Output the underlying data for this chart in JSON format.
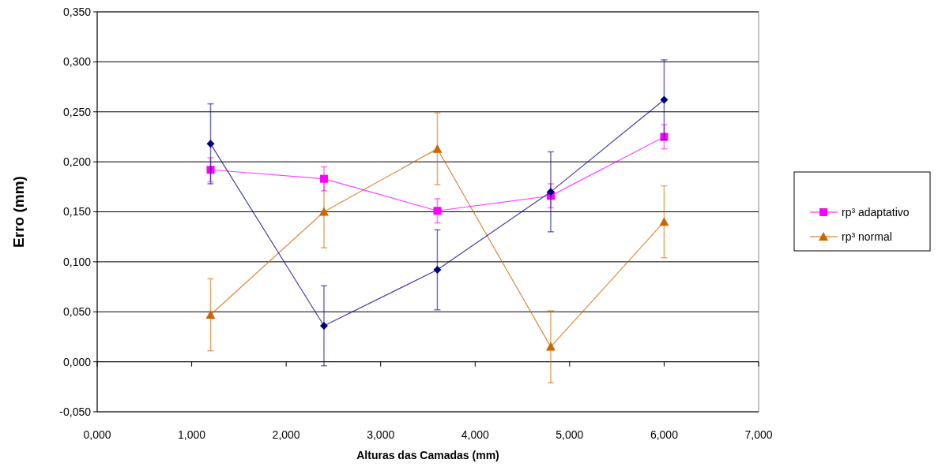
{
  "chart_data": {
    "type": "line",
    "xlabel": "Alturas das Camadas  (mm)",
    "ylabel": "Erro (mm)",
    "xlim": [
      0,
      7
    ],
    "xticks": [
      {
        "value": 0,
        "label": "0,000"
      },
      {
        "value": 1,
        "label": "1,000"
      },
      {
        "value": 2,
        "label": "2,000"
      },
      {
        "value": 3,
        "label": "3,000"
      },
      {
        "value": 4,
        "label": "4,000"
      },
      {
        "value": 5,
        "label": "5,000"
      },
      {
        "value": 6,
        "label": "6,000"
      },
      {
        "value": 7,
        "label": "7,000"
      }
    ],
    "ylim": [
      -0.05,
      0.35
    ],
    "yticks": [
      {
        "value": -0.05,
        "label": "-0,050"
      },
      {
        "value": 0,
        "label": "0,000"
      },
      {
        "value": 0.05,
        "label": "0,050"
      },
      {
        "value": 0.1,
        "label": "0,100"
      },
      {
        "value": 0.15,
        "label": "0,150"
      },
      {
        "value": 0.2,
        "label": "0,200"
      },
      {
        "value": 0.25,
        "label": "0,250"
      },
      {
        "value": 0.3,
        "label": "0,300"
      },
      {
        "value": 0.35,
        "label": "0,350"
      }
    ],
    "grid": "y",
    "legend": "right",
    "x": [
      1.2,
      2.4,
      3.6,
      4.8,
      6.0
    ],
    "series": [
      {
        "color": "#000080",
        "marker": "diamond",
        "values": [
          0.218,
          0.036,
          0.092,
          0.17,
          0.262
        ],
        "errors": [
          0.04,
          0.04,
          0.04,
          0.04,
          0.04
        ]
      },
      {
        "name": "rp³ adaptativo",
        "color": "#ff00ff",
        "marker": "square",
        "values": [
          0.192,
          0.183,
          0.151,
          0.166,
          0.225
        ],
        "errors": [
          0.012,
          0.012,
          0.012,
          0.012,
          0.012
        ]
      },
      {
        "name": "rp³ normal",
        "color": "#cc6600",
        "marker": "triangle",
        "values": [
          0.047,
          0.15,
          0.213,
          0.015,
          0.14
        ],
        "errors": [
          0.036,
          0.036,
          0.036,
          0.036,
          0.036
        ]
      }
    ]
  }
}
